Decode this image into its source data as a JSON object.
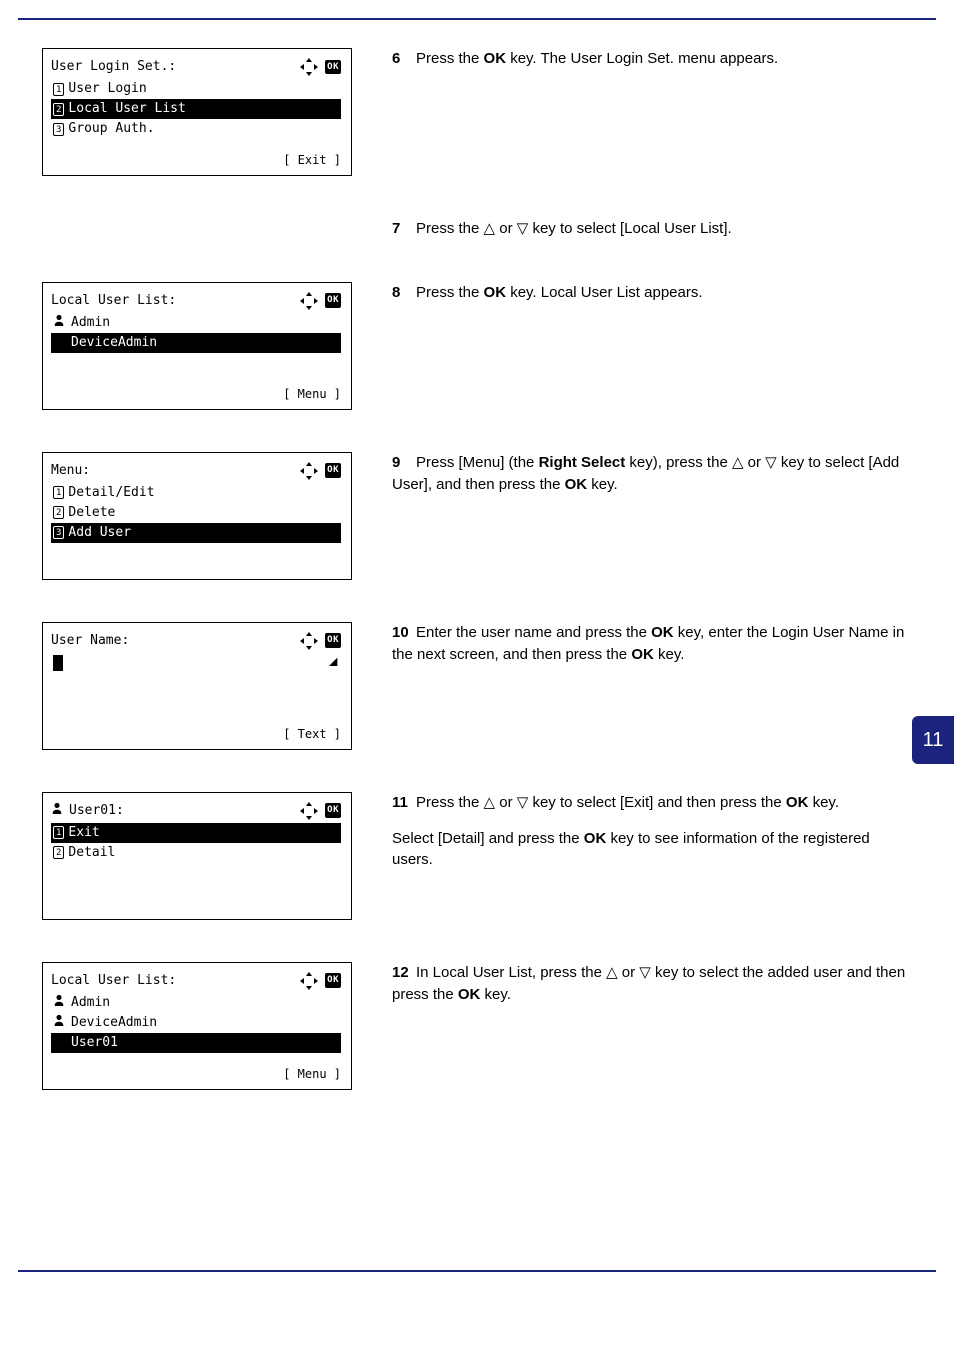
{
  "page_tab": "11",
  "steps": [
    {
      "id": 6,
      "lcd": {
        "title": "User Login Set.:",
        "nav": "full",
        "lines": [
          {
            "num": "1",
            "icon": null,
            "text": "User Login",
            "selected": false
          },
          {
            "num": "2",
            "icon": null,
            "text": "Local User List",
            "selected": true
          },
          {
            "num": "3",
            "icon": null,
            "text": "Group Auth.",
            "selected": false
          }
        ],
        "soft_right": "[ Exit ]"
      },
      "instruction_html": "Press the <b>OK</b> key. The User Login Set. menu appears."
    },
    {
      "id": 7,
      "lcd": null,
      "instruction_html": "Press the △ or ▽ key to select [Local User List]."
    },
    {
      "id": 8,
      "lcd": {
        "title": "Local User List:",
        "nav": "full-tight",
        "lines": [
          {
            "num": null,
            "icon": "user",
            "text": "Admin",
            "selected": false
          },
          {
            "num": null,
            "icon": "user",
            "text": "DeviceAdmin",
            "selected": true
          }
        ],
        "soft_right": "[ Menu ]"
      },
      "instruction_html": "Press the <b>OK</b> key. Local User List appears."
    },
    {
      "id": 9,
      "lcd": {
        "title": "Menu:",
        "nav": "full",
        "lines": [
          {
            "num": "1",
            "icon": null,
            "text": "Detail/Edit",
            "selected": false
          },
          {
            "num": "2",
            "icon": null,
            "text": "Delete",
            "selected": false
          },
          {
            "num": "3",
            "icon": null,
            "text": "Add User",
            "selected": true
          }
        ]
      },
      "instruction_html": "Press [Menu] (the <b>Right Select</b> key), press the △ or ▽ key to select [Add User], and then press the <b>OK</b> key."
    },
    {
      "id": 10,
      "lcd": {
        "title": "User Name:",
        "nav": "dotted",
        "cursor": true,
        "soft_right_icon": "cursor",
        "soft_left": "",
        "soft_right": "[ Text ]",
        "abc_icon": true
      },
      "instruction_html": "Enter the user name and press the <b>OK</b> key, enter the Login User Name in the next screen, and then press the <b>OK</b> key."
    },
    {
      "id": 11,
      "lcd": {
        "pretitle_icon": "user",
        "title": "User01:",
        "nav": "full-tight",
        "lines": [
          {
            "num": "1",
            "icon": null,
            "text": "Exit",
            "selected": true
          },
          {
            "num": "2",
            "icon": null,
            "text": "Detail",
            "selected": false
          }
        ]
      },
      "instruction_html": "Press the △ or ▽ key to select [Exit] and then press the <b>OK</b> key.",
      "instruction2_html": "Select [Detail] and press the <b>OK</b> key to see information of the registered users."
    },
    {
      "id": 12,
      "lcd": {
        "title": "Local User List:",
        "nav": "full",
        "lines": [
          {
            "num": null,
            "icon": "user",
            "text": "Admin",
            "selected": false
          },
          {
            "num": null,
            "icon": "user",
            "text": "DeviceAdmin",
            "selected": false
          },
          {
            "num": null,
            "icon": "user",
            "text": "User01",
            "selected": true
          }
        ],
        "soft_right": "[ Menu ]"
      },
      "instruction_html": "In Local User List, press the △ or ▽ key to select the added user and then press the <b>OK</b> key."
    }
  ]
}
